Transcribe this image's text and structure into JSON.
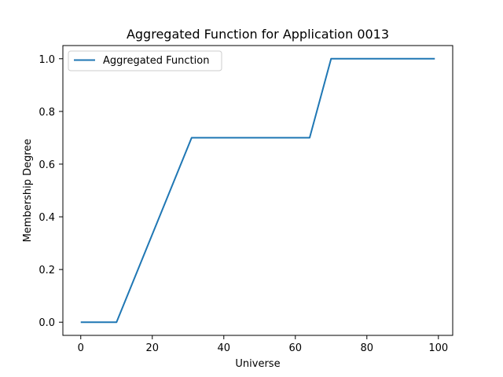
{
  "chart_data": {
    "type": "line",
    "title": "Aggregated Function for Application 0013",
    "xlabel": "Universe",
    "ylabel": "Membership Degree",
    "xlim": [
      -5,
      104
    ],
    "ylim": [
      -0.05,
      1.05
    ],
    "xticks": [
      0,
      20,
      40,
      60,
      80,
      100
    ],
    "xtick_labels": [
      "0",
      "20",
      "40",
      "60",
      "80",
      "100"
    ],
    "yticks": [
      0.0,
      0.2,
      0.4,
      0.6,
      0.8,
      1.0
    ],
    "ytick_labels": [
      "0.0",
      "0.2",
      "0.4",
      "0.6",
      "0.8",
      "1.0"
    ],
    "grid": false,
    "legend_position": "top-left",
    "series": [
      {
        "name": "Aggregated Function",
        "color": "#1f77b4",
        "x": [
          0,
          10,
          31,
          64,
          70,
          99
        ],
        "y": [
          0.0,
          0.0,
          0.7,
          0.7,
          1.0,
          1.0
        ]
      }
    ]
  }
}
